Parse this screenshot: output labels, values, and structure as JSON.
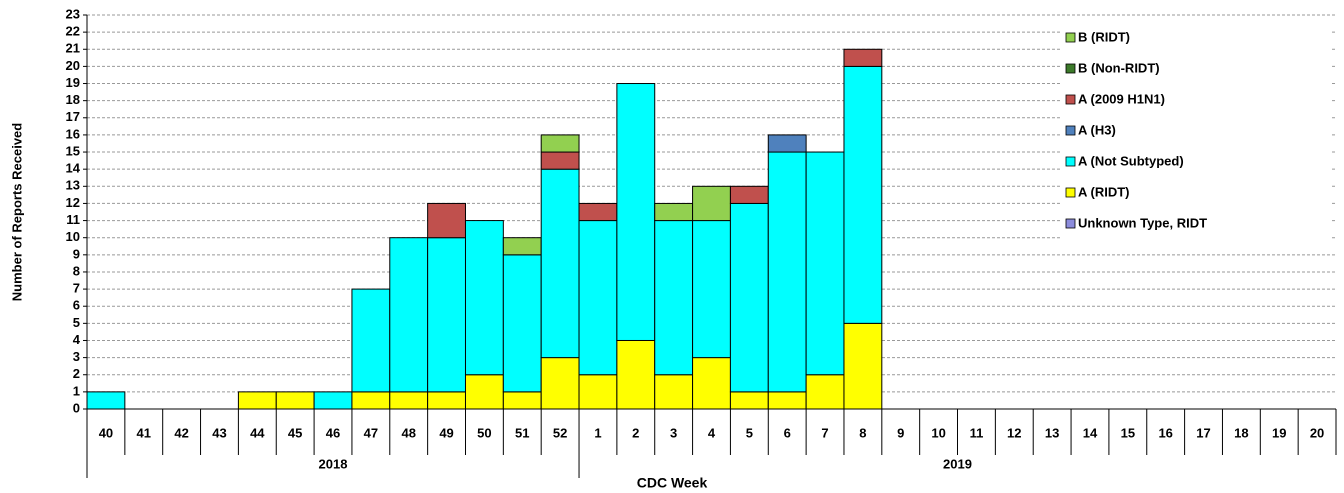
{
  "chart_data": {
    "type": "stacked_bar",
    "y_label": "Number of Reports Received",
    "x_label": "CDC Week",
    "categories": [
      "40",
      "41",
      "42",
      "43",
      "44",
      "45",
      "46",
      "47",
      "48",
      "49",
      "50",
      "51",
      "52",
      "1",
      "2",
      "3",
      "4",
      "5",
      "6",
      "7",
      "8",
      "9",
      "10",
      "11",
      "12",
      "13",
      "14",
      "15",
      "16",
      "17",
      "18",
      "19",
      "20"
    ],
    "x_groups": [
      "2018",
      "2019"
    ],
    "series": [
      {
        "name": "Unknown Type, RIDT",
        "color": "#8c8cdc",
        "values": [
          0,
          0,
          0,
          0,
          0,
          0,
          0,
          0,
          0,
          0,
          0,
          0,
          0,
          0,
          0,
          0,
          0,
          0,
          0,
          0,
          0,
          0,
          0,
          0,
          0,
          0,
          0,
          0,
          0,
          0,
          0,
          0,
          0
        ]
      },
      {
        "name": "A (RIDT)",
        "color": "#ffff00",
        "values": [
          0,
          0,
          0,
          0,
          1,
          1,
          0,
          1,
          1,
          1,
          2,
          1,
          3,
          2,
          4,
          2,
          3,
          1,
          1,
          2,
          5,
          0,
          0,
          0,
          0,
          0,
          0,
          0,
          0,
          0,
          0,
          0,
          0
        ]
      },
      {
        "name": "A (Not Subtyped)",
        "color": "#00ffff",
        "values": [
          1,
          0,
          0,
          0,
          0,
          0,
          1,
          6,
          9,
          9,
          9,
          8,
          11,
          9,
          15,
          9,
          8,
          11,
          14,
          13,
          15,
          0,
          0,
          0,
          0,
          0,
          0,
          0,
          0,
          0,
          0,
          0,
          0
        ]
      },
      {
        "name": "A (H3)",
        "color": "#4f81bd",
        "values": [
          0,
          0,
          0,
          0,
          0,
          0,
          0,
          0,
          0,
          0,
          0,
          0,
          0,
          0,
          0,
          0,
          0,
          0,
          1,
          0,
          0,
          0,
          0,
          0,
          0,
          0,
          0,
          0,
          0,
          0,
          0,
          0,
          0
        ]
      },
      {
        "name": "A (2009 H1N1)",
        "color": "#c0504d",
        "values": [
          0,
          0,
          0,
          0,
          0,
          0,
          0,
          0,
          0,
          2,
          0,
          0,
          1,
          1,
          0,
          0,
          0,
          1,
          0,
          0,
          1,
          0,
          0,
          0,
          0,
          0,
          0,
          0,
          0,
          0,
          0,
          0,
          0
        ]
      },
      {
        "name": "B (Non-RIDT)",
        "color": "#3c7a2a",
        "values": [
          0,
          0,
          0,
          0,
          0,
          0,
          0,
          0,
          0,
          0,
          0,
          0,
          0,
          0,
          0,
          0,
          0,
          0,
          0,
          0,
          0,
          0,
          0,
          0,
          0,
          0,
          0,
          0,
          0,
          0,
          0,
          0,
          0
        ]
      },
      {
        "name": "B (RIDT)",
        "color": "#92d050",
        "values": [
          0,
          0,
          0,
          0,
          0,
          0,
          0,
          0,
          0,
          0,
          0,
          1,
          1,
          0,
          0,
          1,
          2,
          0,
          0,
          0,
          0,
          0,
          0,
          0,
          0,
          0,
          0,
          0,
          0,
          0,
          0,
          0,
          0
        ]
      }
    ],
    "ylim": [
      0,
      23
    ],
    "yticks": [
      0,
      1,
      2,
      3,
      4,
      5,
      6,
      7,
      8,
      9,
      10,
      11,
      12,
      13,
      14,
      15,
      16,
      17,
      18,
      19,
      20,
      21,
      22,
      23
    ],
    "grid": true,
    "legend": "upper right"
  }
}
